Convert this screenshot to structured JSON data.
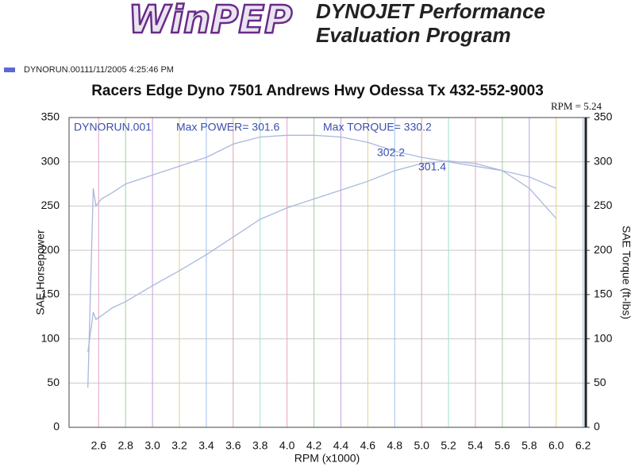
{
  "header": {
    "logo": "WinPEP",
    "program_line1": "DYNOJET Performance",
    "program_line2": "Evaluation Program",
    "run_info": "DYNORUN.00111/11/2005 4:25:46 PM"
  },
  "chart_data": {
    "type": "line",
    "title": "Racers Edge Dyno  7501 Andrews Hwy  Odessa Tx  432-552-9003",
    "x_label": "RPM (x1000)",
    "y_label": "SAE Horsepower",
    "y2_label": "SAE Torque (ft-lbs)",
    "annotations": [
      "RPM = 5.24",
      "DYNORUN.001",
      "Max POWER= 301.6",
      "Max TORQUE= 330.2",
      "302.2",
      "301.4"
    ],
    "x": [
      2.52,
      2.56,
      2.58,
      2.62,
      2.7,
      2.8,
      3.0,
      3.2,
      3.4,
      3.6,
      3.8,
      4.0,
      4.2,
      4.4,
      4.6,
      4.8,
      5.0,
      5.2,
      5.4,
      5.6,
      5.8,
      6.0
    ],
    "series": [
      {
        "name": "SAE Horsepower",
        "color": "#a9b8dc",
        "values": [
          85,
          130,
          122,
          126,
          135,
          142,
          160,
          177,
          195,
          215,
          235,
          248,
          258,
          268,
          278,
          290,
          298,
          301,
          298,
          290,
          270,
          236
        ]
      },
      {
        "name": "SAE Torque",
        "color": "#a9b8dc",
        "axis": "y2",
        "values": [
          45,
          270,
          250,
          258,
          265,
          275,
          285,
          295,
          305,
          320,
          328,
          330,
          330,
          328,
          322,
          312,
          305,
          300,
          295,
          290,
          283,
          270
        ]
      }
    ],
    "xlim": [
      2.38,
      6.22
    ],
    "xticks": [
      2.6,
      2.8,
      {
        "value": 3,
        "label": "3.0"
      },
      3.2,
      3.4,
      3.6,
      3.8,
      {
        "value": 4,
        "label": "4.0"
      },
      4.2,
      4.4,
      4.6,
      4.8,
      {
        "value": 5,
        "label": "5.0"
      },
      5.2,
      5.4,
      5.6,
      5.8,
      {
        "value": 6,
        "label": "6.0"
      },
      6.2
    ],
    "ylim": [
      0,
      350
    ],
    "yticks": [
      0,
      50,
      100,
      150,
      200,
      250,
      300,
      350
    ],
    "y2lim": [
      0,
      350
    ],
    "y2ticks": [
      0,
      50,
      100,
      150,
      200,
      250,
      300,
      350
    ],
    "grid": true,
    "grid_colors": [
      "#e8a0c8",
      "#a0d0a0",
      "#c0a0e0",
      "#e0d080",
      "#a0c0e8",
      "#e0a0a0",
      "#a0e0d0"
    ]
  }
}
